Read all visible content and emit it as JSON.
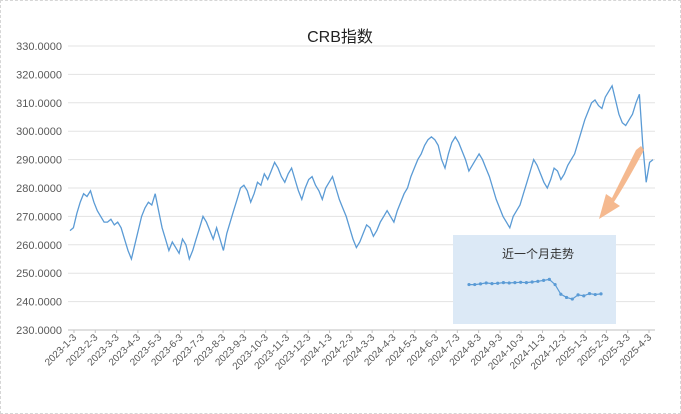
{
  "chart_data": {
    "type": "line",
    "title": "CRB指数",
    "ylim": [
      230,
      330
    ],
    "yticks": [
      "230.0000",
      "240.0000",
      "250.0000",
      "260.0000",
      "270.0000",
      "280.0000",
      "290.0000",
      "300.0000",
      "310.0000",
      "320.0000",
      "330.0000"
    ],
    "x_tick_labels": [
      "2023-1-3",
      "2023-2-3",
      "2023-3-3",
      "2023-4-3",
      "2023-5-3",
      "2023-6-3",
      "2023-7-3",
      "2023-8-3",
      "2023-9-3",
      "2023-10-3",
      "2023-11-3",
      "2023-12-3",
      "2024-1-3",
      "2024-2-3",
      "2024-3-3",
      "2024-4-3",
      "2024-5-3",
      "2024-6-3",
      "2024-7-3",
      "2024-8-3",
      "2024-9-3",
      "2024-10-3",
      "2024-11-3",
      "2024-12-3",
      "2025-1-3",
      "2025-2-3",
      "2025-3-3",
      "2025-4-3"
    ],
    "grid": true,
    "line_color": "#5b9bd5",
    "series": [
      {
        "values": [
          265,
          266,
          271,
          275,
          278,
          277,
          279,
          275,
          272,
          270,
          268,
          268,
          269,
          267,
          268,
          266,
          262,
          258,
          255,
          260,
          265,
          270,
          273,
          275,
          274,
          278,
          272,
          266,
          262,
          258,
          261,
          259,
          257,
          262,
          260,
          255,
          258,
          262,
          266,
          270,
          268,
          265,
          262,
          266,
          262,
          258,
          264,
          268,
          272,
          276,
          280,
          281,
          279,
          275,
          278,
          282,
          281,
          285,
          283,
          286,
          289,
          287,
          284,
          282,
          285,
          287,
          283,
          279,
          276,
          280,
          283,
          284,
          281,
          279,
          276,
          280,
          282,
          284,
          280,
          276,
          273,
          270,
          266,
          262,
          259,
          261,
          264,
          267,
          266,
          263,
          265,
          268,
          270,
          272,
          270,
          268,
          272,
          275,
          278,
          280,
          284,
          287,
          290,
          292,
          295,
          297,
          298,
          297,
          295,
          290,
          287,
          292,
          296,
          298,
          296,
          293,
          290,
          286,
          288,
          290,
          292,
          290,
          287,
          284,
          280,
          276,
          273,
          270,
          268,
          266,
          270,
          272,
          274,
          278,
          282,
          286,
          290,
          288,
          285,
          282,
          280,
          283,
          287,
          286,
          283,
          285,
          288,
          290,
          292,
          296,
          300,
          304,
          307,
          310,
          311,
          309,
          308,
          312,
          314,
          316,
          311,
          306,
          303,
          302,
          304,
          306,
          310,
          313,
          295,
          282,
          289,
          290
        ],
        "x": null
      }
    ],
    "inset": {
      "title": "近一个月走势",
      "values": [
        249,
        249,
        249.2,
        249.5,
        249.3,
        249.4,
        249.6,
        249.5,
        249.6,
        249.7,
        249.6,
        249.8,
        250.0,
        250.3,
        250.6,
        249.0,
        246.0,
        245.0,
        244.5,
        245.8,
        245.5,
        246.2,
        245.9,
        246.1
      ],
      "ylim": [
        238,
        256
      ]
    },
    "annotation": "arrow"
  },
  "colors": {
    "line": "#5b9bd5",
    "inset_bg": "#dce9f6",
    "inset_line": "#5b9bd5",
    "arrow": "#f4b183",
    "grid": "#e3e3e3"
  }
}
